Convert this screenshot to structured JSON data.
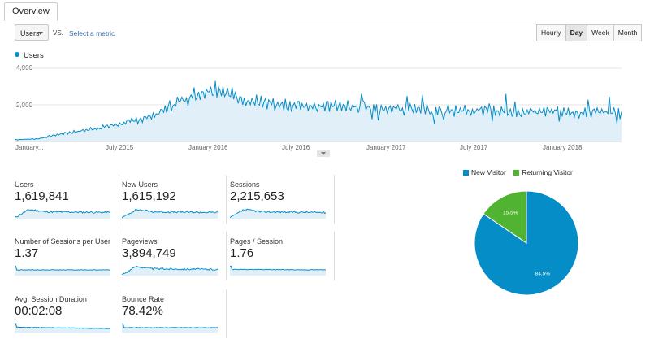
{
  "tabs": [
    {
      "label": "Overview"
    }
  ],
  "metric_selector": {
    "value": "Users",
    "vs": "VS.",
    "select_metric": "Select a metric"
  },
  "period_buttons": [
    {
      "label": "Hourly"
    },
    {
      "label": "Day",
      "active": true
    },
    {
      "label": "Week"
    },
    {
      "label": "Month"
    }
  ],
  "colors": {
    "accent": "#058dc7",
    "area": "#e1f0f8",
    "returning": "#50b432",
    "grid": "#e5e5e5"
  },
  "main_chart": {
    "legend": "Users",
    "y_ticks": [
      "4,000",
      "2,000"
    ],
    "x_ticks": [
      "January...",
      "July 2015",
      "January 2016",
      "July 2016",
      "January 2017",
      "July 2017",
      "January 2018"
    ]
  },
  "chart_data": [
    {
      "type": "line",
      "series": [
        {
          "name": "Users",
          "values": [
            100,
            120,
            150,
            300,
            420,
            520,
            620,
            730,
            860,
            980,
            1120,
            1300,
            1500,
            1900,
            2250,
            2500,
            2750,
            2950,
            2600,
            2350,
            2200,
            2050,
            1980,
            1950,
            1980,
            1940,
            1950,
            1960,
            1900,
            1880,
            1850,
            1830,
            1820,
            1780,
            1760,
            1740,
            1720,
            1700,
            1680,
            1720,
            1750,
            1650,
            1600,
            1600,
            1680,
            1640,
            1680,
            1520,
            1560,
            1620,
            1600,
            1520
          ]
        }
      ],
      "ylim": [
        0,
        4000
      ],
      "x_tick_labels": [
        "January...",
        "July 2015",
        "January 2016",
        "July 2016",
        "January 2017",
        "July 2017",
        "January 2018"
      ],
      "y_tick_labels": [
        "4,000",
        "2,000"
      ],
      "legend": "top-left",
      "grid": true
    },
    {
      "type": "pie",
      "categories": [
        "New Visitor",
        "Returning Visitor"
      ],
      "values": [
        84.5,
        15.5
      ],
      "labels": [
        "84.5%",
        "15.5%"
      ]
    }
  ],
  "metrics": [
    {
      "label": "Users",
      "value": "1,619,841",
      "kind": "bumpy"
    },
    {
      "label": "New Users",
      "value": "1,615,192",
      "kind": "bumpy"
    },
    {
      "label": "Sessions",
      "value": "2,215,653",
      "kind": "bumpy"
    },
    {
      "label": "Number of Sessions per User",
      "value": "1.37",
      "kind": "flat"
    },
    {
      "label": "Pageviews",
      "value": "3,894,749",
      "kind": "bumpy"
    },
    {
      "label": "Pages / Session",
      "value": "1.76",
      "kind": "flatspike"
    },
    {
      "label": "Avg. Session Duration",
      "value": "00:02:08",
      "kind": "spikedecay"
    },
    {
      "label": "Bounce Rate",
      "value": "78.42%",
      "kind": "flat"
    }
  ],
  "pie": {
    "legend": [
      {
        "label": "New Visitor"
      },
      {
        "label": "Returning Visitor"
      }
    ]
  }
}
